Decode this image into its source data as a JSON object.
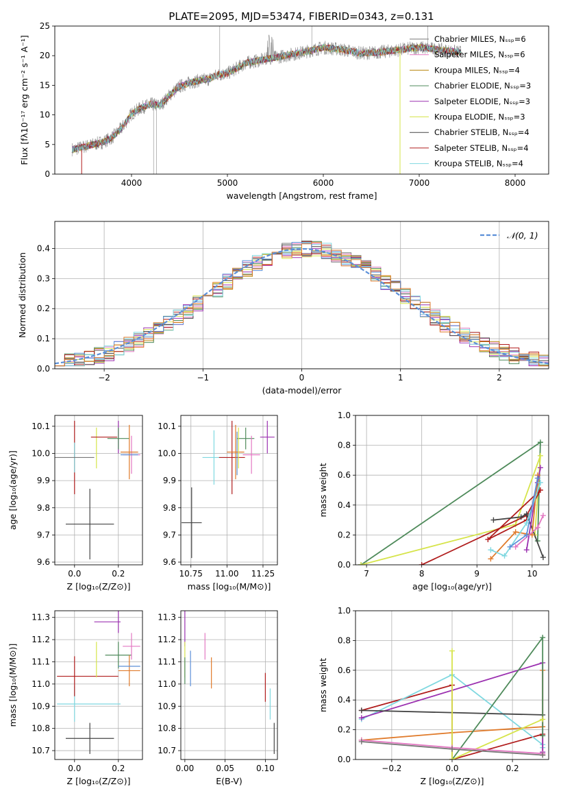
{
  "title": "PLATE=2095, MJD=53474, FIBERID=0343, z=0.131",
  "colors": {
    "Chabrier MILES": "#777777",
    "Salpeter MILES": "#e377c2",
    "Kroupa MILES": "#b8860b",
    "Chabrier ELODIE": "#4e8a5a",
    "Salpeter ELODIE": "#9b30b0",
    "Kroupa ELODIE": "#d6e44a",
    "Chabrier STELIB": "#444444",
    "Salpeter STELIB": "#b01c1c",
    "Kroupa STELIB": "#7fd8e0",
    "extra_blue": "#5b8fd8",
    "extra_orange": "#e07a2a"
  },
  "chart_data": [
    {
      "id": "spectrum",
      "type": "line",
      "xlabel": "wavelength [Angstrom, rest frame]",
      "ylabel": "Flux [fλ10⁻¹⁷ erg cm⁻² s⁻¹ A⁻¹]",
      "xlim": [
        3200,
        8350
      ],
      "ylim": [
        0,
        25
      ],
      "xticks": [
        "4000",
        "5000",
        "6000",
        "7000",
        "8000"
      ],
      "yticks": [
        "0",
        "5",
        "10",
        "15",
        "20",
        "25"
      ],
      "legend": [
        "Chabrier MILES, N_SSP=6",
        "Salpeter MILES, N_SSP=6",
        "Kroupa MILES, N_SSP=4",
        "Chabrier ELODIE, N_SSP=3",
        "Salpeter ELODIE, N_SSP=3",
        "Kroupa ELODIE, N_SSP=3",
        "Chabrier STELIB, N_SSP=4",
        "Salpeter STELIB, N_SSP=4",
        "Kroupa STELIB, N_SSP=4"
      ],
      "legend_labels": [
        "Chabrier MILES, Nₛₛₚ=6",
        "Salpeter MILES, Nₛₛₚ=6",
        "Kroupa MILES, Nₛₛₚ=4",
        "Chabrier ELODIE, Nₛₛₚ=3",
        "Salpeter ELODIE, Nₛₛₚ=3",
        "Kroupa ELODIE, Nₛₛₚ=3",
        "Chabrier STELIB, Nₛₛₚ=4",
        "Salpeter STELIB, Nₛₛₚ=4",
        "Kroupa STELIB, Nₛₛₚ=4"
      ],
      "legend_position": "right",
      "data_curve": {
        "x": [
          3400,
          3500,
          3600,
          3700,
          3800,
          3900,
          4000,
          4100,
          4200,
          4300,
          4400,
          4500,
          4600,
          4700,
          4800,
          4900,
          5000,
          5200,
          5400,
          5600,
          5800,
          6000,
          6200,
          6400,
          6600,
          6800,
          7000,
          7200,
          7400
        ],
        "y": [
          4.2,
          4.6,
          5.0,
          5.4,
          6.2,
          7.8,
          10.2,
          11.2,
          11.8,
          11.6,
          13.4,
          14.8,
          15.4,
          15.8,
          16.0,
          16.8,
          17.0,
          18.8,
          19.4,
          20.0,
          20.6,
          21.4,
          21.0,
          20.4,
          20.6,
          21.0,
          21.4,
          21.0,
          20.6
        ]
      },
      "model_range": [
        3380,
        7450
      ],
      "drop_outs": [
        {
          "series": "Salpeter STELIB",
          "x_start": 3400
        },
        {
          "series": "Salpeter MILES",
          "x_start": 6800
        },
        {
          "series": "Kroupa ELODIE",
          "x_start": 6800
        }
      ]
    },
    {
      "id": "residuals",
      "type": "histogram",
      "xlabel": "(data-model)/error",
      "ylabel": "Normed distribution",
      "xlim": [
        -2.5,
        2.5
      ],
      "ylim": [
        0,
        0.49
      ],
      "xticks": [
        "−2",
        "−1",
        "0",
        "1",
        "2"
      ],
      "yticks": [
        "0.0",
        "0.1",
        "0.2",
        "0.3",
        "0.4"
      ],
      "bin_width": 0.1,
      "reference": "N(0,1)",
      "legend_label": "𝒩(0, 1)",
      "legend_position": "top-right"
    },
    {
      "id": "age-Z",
      "type": "errorbar",
      "xlabel": "Z [log₁₀(Z/Z⊙)]",
      "ylabel": "age  [log₁₀(age/yr)]",
      "xlim": [
        -0.09,
        0.31
      ],
      "ylim": [
        9.59,
        10.14
      ],
      "xticks": [
        "0.0",
        "0.2"
      ],
      "yticks": [
        "9.6",
        "9.7",
        "9.8",
        "9.9",
        "10.0",
        "10.1"
      ],
      "points": [
        {
          "s": "Chabrier STELIB",
          "x": 0.07,
          "xe": 0.11,
          "y": 9.74,
          "ye": 0.13
        },
        {
          "s": "Salpeter STELIB",
          "x": 0.0,
          "xe": 0.0,
          "y": 9.985,
          "ye": 0.135
        },
        {
          "s": "Kroupa STELIB",
          "x": 0.0,
          "xe": 0.0,
          "y": 9.985,
          "ye": 0.055
        },
        {
          "s": "Chabrier MILES",
          "x": 0.0,
          "xe": 0.09,
          "y": 9.985,
          "ye": 0.0
        },
        {
          "s": "Kroupa ELODIE",
          "x": 0.1,
          "xe": 0.0,
          "y": 10.02,
          "ye": 0.075
        },
        {
          "s": "Salpeter ELODIE",
          "x": 0.2,
          "xe": 0.0,
          "y": 10.06,
          "ye": 0.06
        },
        {
          "s": "Chabrier ELODIE",
          "x": 0.2,
          "xe": 0.05,
          "y": 10.055,
          "ye": 0.04
        },
        {
          "s": "Salpeter STELIB",
          "x": 0.135,
          "xe": 0.06,
          "y": 10.06,
          "ye": 0.0
        },
        {
          "s": "Salpeter MILES",
          "x": 0.26,
          "xe": 0.04,
          "y": 9.995,
          "ye": 0.07
        },
        {
          "s": "extra_orange",
          "x": 0.25,
          "xe": 0.04,
          "y": 10.005,
          "ye": 0.1
        },
        {
          "s": "extra_blue",
          "x": 0.25,
          "xe": 0.04,
          "y": 9.995,
          "ye": 0.0
        }
      ]
    },
    {
      "id": "age-mass",
      "type": "errorbar",
      "xlabel": "mass [log₁₀(M/M⊙)]",
      "ylabel": "",
      "xlim": [
        10.68,
        11.35
      ],
      "ylim": [
        9.59,
        10.14
      ],
      "xticks": [
        "10.75",
        "11.00",
        "11.25"
      ],
      "yticks": [
        "9.6",
        "9.7",
        "9.8",
        "9.9",
        "10.0",
        "10.1"
      ],
      "points": [
        {
          "s": "Chabrier STELIB",
          "x": 10.755,
          "xe": 0.07,
          "y": 9.745,
          "ye": 0.13
        },
        {
          "s": "Kroupa STELIB",
          "x": 10.91,
          "xe": 0.08,
          "y": 9.985,
          "ye": 0.1
        },
        {
          "s": "Salpeter STELIB",
          "x": 11.035,
          "xe": 0.09,
          "y": 9.985,
          "ye": 0.135
        },
        {
          "s": "extra_blue",
          "x": 11.07,
          "xe": 0.0,
          "y": 10.0,
          "ye": 0.08
        },
        {
          "s": "extra_orange",
          "x": 11.06,
          "xe": 0.06,
          "y": 10.005,
          "ye": 0.1
        },
        {
          "s": "Chabrier ELODIE",
          "x": 11.13,
          "xe": 0.06,
          "y": 10.055,
          "ye": 0.04
        },
        {
          "s": "Kroupa ELODIE",
          "x": 11.08,
          "xe": 0.0,
          "y": 10.02,
          "ye": 0.075
        },
        {
          "s": "Salpeter MILES",
          "x": 11.17,
          "xe": 0.06,
          "y": 9.995,
          "ye": 0.07
        },
        {
          "s": "Salpeter ELODIE",
          "x": 11.28,
          "xe": 0.05,
          "y": 10.06,
          "ye": 0.06
        }
      ]
    },
    {
      "id": "weight-age",
      "type": "line",
      "xlabel": "age  [log₁₀(age/yr)]",
      "ylabel": "mass weight",
      "xlim": [
        6.8,
        10.3
      ],
      "ylim": [
        0,
        1
      ],
      "xticks": [
        "7",
        "8",
        "9",
        "10"
      ],
      "yticks": [
        "0.0",
        "0.2",
        "0.4",
        "0.6",
        "0.8",
        "1.0"
      ],
      "series": [
        {
          "s": "Chabrier ELODIE",
          "x": [
            6.9,
            10.15,
            10.1
          ],
          "y": [
            0.0,
            0.82,
            0.16
          ]
        },
        {
          "s": "Kroupa ELODIE",
          "x": [
            6.9,
            9.7,
            10.15,
            10.05
          ],
          "y": [
            0.0,
            0.27,
            0.73,
            0.2
          ]
        },
        {
          "s": "Salpeter STELIB",
          "x": [
            8.0,
            9.9,
            10.15,
            9.2,
            9.9
          ],
          "y": [
            0.0,
            0.33,
            0.5,
            0.17,
            0.3
          ]
        },
        {
          "s": "Chabrier STELIB",
          "x": [
            9.3,
            9.8,
            9.9,
            10.2
          ],
          "y": [
            0.3,
            0.32,
            0.34,
            0.05
          ]
        },
        {
          "s": "Salpeter ELODIE",
          "x": [
            9.9,
            10.1,
            10.15
          ],
          "y": [
            0.1,
            0.55,
            0.65
          ]
        },
        {
          "s": "extra_orange",
          "x": [
            9.25,
            9.7,
            10.0,
            10.1
          ],
          "y": [
            0.04,
            0.22,
            0.2,
            0.6
          ]
        },
        {
          "s": "Salpeter MILES",
          "x": [
            9.7,
            10.1,
            10.2
          ],
          "y": [
            0.12,
            0.25,
            0.33
          ]
        },
        {
          "s": "Kroupa STELIB",
          "x": [
            9.25,
            9.5,
            9.9,
            10.15
          ],
          "y": [
            0.1,
            0.06,
            0.28,
            0.55
          ]
        },
        {
          "s": "extra_blue",
          "x": [
            9.6,
            9.9,
            10.1
          ],
          "y": [
            0.12,
            0.2,
            0.58
          ]
        }
      ]
    },
    {
      "id": "mass-Z",
      "type": "errorbar",
      "xlabel": "Z [log₁₀(Z/Z⊙)]",
      "ylabel": "mass [log₁₀(M/M⊙)]",
      "xlim": [
        -0.09,
        0.31
      ],
      "ylim": [
        10.66,
        11.33
      ],
      "xticks": [
        "0.0",
        "0.2"
      ],
      "yticks": [
        "10.7",
        "10.8",
        "10.9",
        "11.0",
        "11.1",
        "11.2",
        "11.3"
      ],
      "points": [
        {
          "s": "Chabrier STELIB",
          "x": 0.07,
          "xe": 0.11,
          "y": 10.755,
          "ye": 0.07
        },
        {
          "s": "Kroupa STELIB",
          "x": 0.065,
          "xe": 0.145,
          "y": 10.91,
          "ye": 0.0
        },
        {
          "s": "Kroupa STELIB",
          "x": 0.0,
          "xe": 0.0,
          "y": 10.91,
          "ye": 0.08
        },
        {
          "s": "Salpeter STELIB",
          "x": 0.06,
          "xe": 0.14,
          "y": 11.035,
          "ye": 0.0
        },
        {
          "s": "Salpeter STELIB",
          "x": 0.0,
          "xe": 0.0,
          "y": 11.035,
          "ye": 0.09
        },
        {
          "s": "Kroupa ELODIE",
          "x": 0.1,
          "xe": 0.0,
          "y": 11.11,
          "ye": 0.08
        },
        {
          "s": "Chabrier ELODIE",
          "x": 0.2,
          "xe": 0.06,
          "y": 11.13,
          "ye": 0.06
        },
        {
          "s": "Salpeter ELODIE",
          "x": 0.2,
          "xe": 0.0,
          "y": 11.28,
          "ye": 0.05
        },
        {
          "s": "Salpeter ELODIE",
          "x": 0.15,
          "xe": 0.06,
          "y": 11.28,
          "ye": 0.0
        },
        {
          "s": "Salpeter MILES",
          "x": 0.26,
          "xe": 0.04,
          "y": 11.17,
          "ye": 0.06
        },
        {
          "s": "extra_orange",
          "x": 0.25,
          "xe": 0.05,
          "y": 11.06,
          "ye": 0.07
        },
        {
          "s": "extra_blue",
          "x": 0.25,
          "xe": 0.05,
          "y": 11.08,
          "ye": 0.0
        }
      ]
    },
    {
      "id": "mass-EBV",
      "type": "errorbar",
      "xlabel": "E(B-V)",
      "ylabel": "",
      "xlim": [
        -0.005,
        0.115
      ],
      "ylim": [
        10.66,
        11.33
      ],
      "xticks": [
        "0.00",
        "0.05",
        "0.10"
      ],
      "yticks": [
        "10.7",
        "10.8",
        "10.9",
        "11.0",
        "11.1",
        "11.2",
        "11.3"
      ],
      "points": [
        {
          "s": "Salpeter ELODIE",
          "x": 0.0,
          "xe": 0.0,
          "y": 11.25,
          "ye": 0.08
        },
        {
          "s": "Kroupa ELODIE",
          "x": 0.0,
          "xe": 0.0,
          "y": 11.11,
          "ye": 0.08
        },
        {
          "s": "Chabrier ELODIE",
          "x": 0.0,
          "xe": 0.0,
          "y": 11.06,
          "ye": 0.06
        },
        {
          "s": "extra_blue",
          "x": 0.007,
          "xe": 0.0,
          "y": 11.07,
          "ye": 0.08
        },
        {
          "s": "Salpeter MILES",
          "x": 0.025,
          "xe": 0.0,
          "y": 11.17,
          "ye": 0.06
        },
        {
          "s": "extra_orange",
          "x": 0.033,
          "xe": 0.0,
          "y": 11.05,
          "ye": 0.07
        },
        {
          "s": "Salpeter STELIB",
          "x": 0.1,
          "xe": 0.0,
          "y": 10.985,
          "ye": 0.065
        },
        {
          "s": "Kroupa STELIB",
          "x": 0.106,
          "xe": 0.0,
          "y": 10.91,
          "ye": 0.07
        },
        {
          "s": "Chabrier STELIB",
          "x": 0.111,
          "xe": 0.0,
          "y": 10.755,
          "ye": 0.07
        }
      ]
    },
    {
      "id": "weight-Z",
      "type": "line",
      "xlabel": "Z [log₁₀(Z/Z⊙)]",
      "ylabel": "mass weight",
      "xlim": [
        -0.32,
        0.32
      ],
      "ylim": [
        0,
        1
      ],
      "xticks": [
        "−0.2",
        "0.0",
        "0.2"
      ],
      "yticks": [
        "0.0",
        "0.2",
        "0.4",
        "0.6",
        "0.8",
        "1.0"
      ],
      "series": [
        {
          "s": "Salpeter STELIB",
          "x": [
            -0.3,
            0.0,
            0.0,
            0.3,
            0.3
          ],
          "y": [
            0.33,
            0.5,
            0.0,
            0.17,
            0.03
          ]
        },
        {
          "s": "Kroupa STELIB",
          "x": [
            -0.3,
            0.0,
            0.3,
            0.3
          ],
          "y": [
            0.27,
            0.57,
            0.1,
            0.08
          ]
        },
        {
          "s": "Salpeter ELODIE",
          "x": [
            -0.3,
            0.3,
            0.3
          ],
          "y": [
            0.28,
            0.65,
            0.05
          ]
        },
        {
          "s": "Chabrier STELIB",
          "x": [
            -0.3,
            0.3
          ],
          "y": [
            0.33,
            0.3
          ]
        },
        {
          "s": "extra_orange",
          "x": [
            -0.3,
            0.0,
            0.3,
            0.3
          ],
          "y": [
            0.13,
            0.18,
            0.22,
            0.6
          ]
        },
        {
          "s": "Chabrier ELODIE",
          "x": [
            0.0,
            0.3,
            0.3
          ],
          "y": [
            0.0,
            0.82,
            0.16
          ]
        },
        {
          "s": "Kroupa ELODIE",
          "x": [
            0.0,
            0.0,
            0.3
          ],
          "y": [
            0.73,
            0.0,
            0.27
          ]
        },
        {
          "s": "Salpeter MILES",
          "x": [
            -0.3,
            0.0,
            0.3
          ],
          "y": [
            0.13,
            0.08,
            0.04
          ]
        },
        {
          "s": "Chabrier MILES",
          "x": [
            -0.3,
            0.0,
            0.3
          ],
          "y": [
            0.12,
            0.07,
            0.03
          ]
        }
      ]
    }
  ]
}
